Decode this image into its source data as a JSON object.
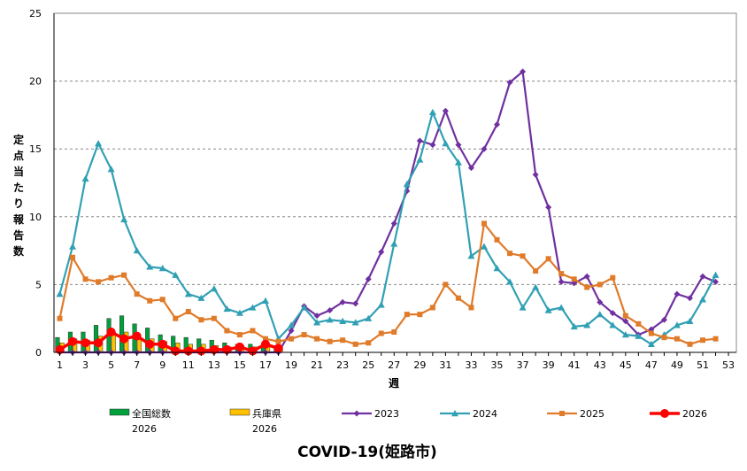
{
  "chart_data": {
    "type": "line",
    "title": "COVID-19(姫路市)",
    "xlabel": "週",
    "ylabel": "定点当たり報告数",
    "xlim": [
      1,
      53
    ],
    "ylim": [
      0,
      25
    ],
    "x_ticks": [
      1,
      3,
      5,
      7,
      9,
      11,
      13,
      15,
      17,
      19,
      21,
      23,
      25,
      27,
      29,
      31,
      33,
      35,
      37,
      39,
      41,
      43,
      45,
      47,
      49,
      51,
      53
    ],
    "y_ticks": [
      0,
      5,
      10,
      15,
      20,
      25
    ],
    "grid": "horizontal-dashed",
    "legend_position": "bottom",
    "colors": {
      "national": "#00a03c",
      "hyogo": "#ffc000",
      "s2023": "#7030a0",
      "s2024": "#31a0b4",
      "s2025": "#e07b2a",
      "s2026": "#ff0000",
      "grid": "#888888"
    },
    "series": [
      {
        "name": "全国総数 2026",
        "legend_lines": [
          "全国総数",
          "2026"
        ],
        "kind": "bar",
        "color_key": "national",
        "x": [
          1,
          2,
          3,
          4,
          5,
          6,
          7,
          8,
          9,
          10,
          11,
          12,
          13,
          14,
          15,
          16,
          17,
          18
        ],
        "values": [
          1.1,
          1.5,
          1.5,
          2.0,
          2.5,
          2.7,
          2.1,
          1.8,
          1.3,
          1.2,
          1.1,
          1.0,
          0.9,
          0.7,
          0.6,
          0.6,
          0.5,
          0.5
        ]
      },
      {
        "name": "兵庫県 2026",
        "legend_lines": [
          "兵庫県",
          "2026"
        ],
        "kind": "bar",
        "color_key": "hyogo",
        "x": [
          1,
          2,
          3,
          4,
          5,
          6,
          7,
          8,
          9,
          10,
          11,
          12,
          13,
          14,
          15,
          16,
          17,
          18
        ],
        "values": [
          0.7,
          1.0,
          0.9,
          1.2,
          1.5,
          1.5,
          1.0,
          1.0,
          0.8,
          0.7,
          0.6,
          0.6,
          0.5,
          0.4,
          0.5,
          0.4,
          0.4,
          0.4
        ]
      },
      {
        "name": "2023",
        "legend_lines": [
          "2023"
        ],
        "kind": "line",
        "marker": "diamond",
        "color_key": "s2023",
        "x": [
          1,
          2,
          3,
          4,
          5,
          6,
          7,
          8,
          9,
          10,
          11,
          12,
          13,
          14,
          15,
          16,
          17,
          18,
          19,
          20,
          21,
          22,
          23,
          24,
          25,
          26,
          27,
          28,
          29,
          30,
          31,
          32,
          33,
          34,
          35,
          36,
          37,
          38,
          39,
          40,
          41,
          42,
          43,
          44,
          45,
          46,
          47,
          48,
          49,
          50,
          51,
          52
        ],
        "values": [
          0,
          0,
          0,
          0,
          0,
          0,
          0,
          0,
          0,
          0,
          0,
          0,
          0,
          0,
          0,
          0,
          0,
          0,
          1.6,
          3.4,
          2.7,
          3.1,
          3.7,
          3.6,
          5.4,
          7.4,
          9.5,
          11.9,
          15.6,
          15.3,
          17.8,
          15.3,
          13.6,
          15.0,
          16.8,
          19.9,
          20.7,
          13.1,
          10.7,
          5.2,
          5.1,
          5.6,
          3.7,
          2.9,
          2.3,
          1.3,
          1.7,
          2.4,
          4.3,
          4.0,
          5.6,
          5.2
        ]
      },
      {
        "name": "2024",
        "legend_lines": [
          "2024"
        ],
        "kind": "line",
        "marker": "triangle",
        "color_key": "s2024",
        "x": [
          1,
          2,
          3,
          4,
          5,
          6,
          7,
          8,
          9,
          10,
          11,
          12,
          13,
          14,
          15,
          16,
          17,
          18,
          19,
          20,
          21,
          22,
          23,
          24,
          25,
          26,
          27,
          28,
          29,
          30,
          31,
          32,
          33,
          34,
          35,
          36,
          37,
          38,
          39,
          40,
          41,
          42,
          43,
          44,
          45,
          46,
          47,
          48,
          49,
          50,
          51,
          52
        ],
        "values": [
          4.3,
          7.8,
          12.8,
          15.4,
          13.5,
          9.8,
          7.5,
          6.3,
          6.2,
          5.7,
          4.3,
          4.0,
          4.7,
          3.2,
          2.9,
          3.3,
          3.8,
          1.0,
          2.0,
          3.3,
          2.2,
          2.4,
          2.3,
          2.2,
          2.5,
          3.5,
          8.0,
          12.4,
          14.2,
          17.7,
          15.4,
          14.0,
          7.1,
          7.8,
          6.2,
          5.2,
          3.3,
          4.8,
          3.1,
          3.3,
          1.9,
          2.0,
          2.8,
          2.0,
          1.3,
          1.2,
          0.6,
          1.3,
          2.0,
          2.3,
          3.9,
          5.7
        ]
      },
      {
        "name": "2025",
        "legend_lines": [
          "2025"
        ],
        "kind": "line",
        "marker": "square",
        "color_key": "s2025",
        "x": [
          1,
          2,
          3,
          4,
          5,
          6,
          7,
          8,
          9,
          10,
          11,
          12,
          13,
          14,
          15,
          16,
          17,
          18,
          19,
          20,
          21,
          22,
          23,
          24,
          25,
          26,
          27,
          28,
          29,
          30,
          31,
          32,
          33,
          34,
          35,
          36,
          37,
          38,
          39,
          40,
          41,
          42,
          43,
          44,
          45,
          46,
          47,
          48,
          49,
          50,
          51,
          52
        ],
        "values": [
          2.5,
          7.0,
          5.4,
          5.2,
          5.5,
          5.7,
          4.3,
          3.8,
          3.9,
          2.5,
          3.0,
          2.4,
          2.5,
          1.6,
          1.3,
          1.6,
          1.0,
          0.8,
          1.0,
          1.3,
          1.0,
          0.8,
          0.9,
          0.6,
          0.7,
          1.4,
          1.5,
          2.8,
          2.8,
          3.3,
          5.0,
          4.0,
          3.3,
          9.5,
          8.3,
          7.3,
          7.1,
          6.0,
          6.9,
          5.8,
          5.4,
          4.8,
          5.0,
          5.5,
          2.7,
          2.1,
          1.4,
          1.1,
          1.0,
          0.6,
          0.9,
          1.0
        ]
      },
      {
        "name": "2026",
        "legend_lines": [
          "2026"
        ],
        "kind": "line",
        "marker": "circle",
        "color_key": "s2026",
        "x": [
          1,
          2,
          3,
          4,
          5,
          6,
          7,
          8,
          9,
          10,
          11,
          12,
          13,
          14,
          15,
          16,
          17,
          18
        ],
        "values": [
          0.2,
          0.8,
          0.7,
          0.7,
          1.5,
          1.0,
          1.2,
          0.6,
          0.6,
          0.1,
          0.1,
          0.1,
          0.2,
          0.2,
          0.4,
          0.1,
          0.6,
          0.3
        ]
      }
    ]
  }
}
